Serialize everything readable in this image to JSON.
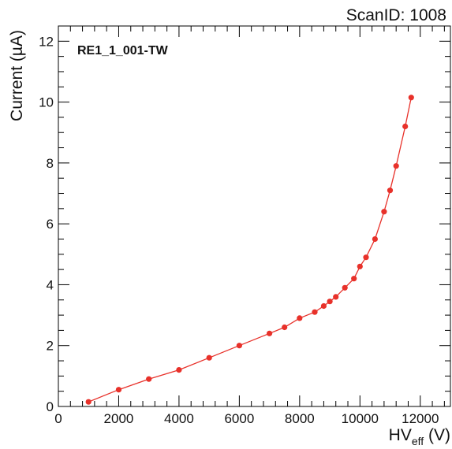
{
  "scan_label": "ScanID: 1008",
  "chart_data": {
    "type": "scatter",
    "title": "",
    "annotation": "RE1_1_001-TW",
    "xlabel": {
      "main": "HV",
      "sub": "eff",
      "unit": " (V)"
    },
    "ylabel": "Current (µA)",
    "xlim": [
      0,
      13000
    ],
    "ylim": [
      0,
      12.5
    ],
    "x_ticks": [
      0,
      2000,
      4000,
      6000,
      8000,
      10000,
      12000
    ],
    "y_ticks": [
      0,
      2,
      4,
      6,
      8,
      10,
      12
    ],
    "grid": false,
    "series": [
      {
        "color": "#e8312a",
        "marker": "circle",
        "line": true,
        "x": [
          1000,
          2000,
          3000,
          4000,
          5000,
          6000,
          7000,
          7500,
          8000,
          8500,
          8800,
          9000,
          9200,
          9500,
          9800,
          10000,
          10200,
          10500,
          10800,
          11000,
          11200,
          11500,
          11700
        ],
        "y": [
          0.15,
          0.55,
          0.9,
          1.2,
          1.6,
          2.0,
          2.4,
          2.6,
          2.9,
          3.1,
          3.3,
          3.45,
          3.6,
          3.9,
          4.2,
          4.6,
          4.9,
          5.5,
          6.4,
          7.1,
          7.9,
          9.2,
          10.15
        ]
      }
    ]
  }
}
